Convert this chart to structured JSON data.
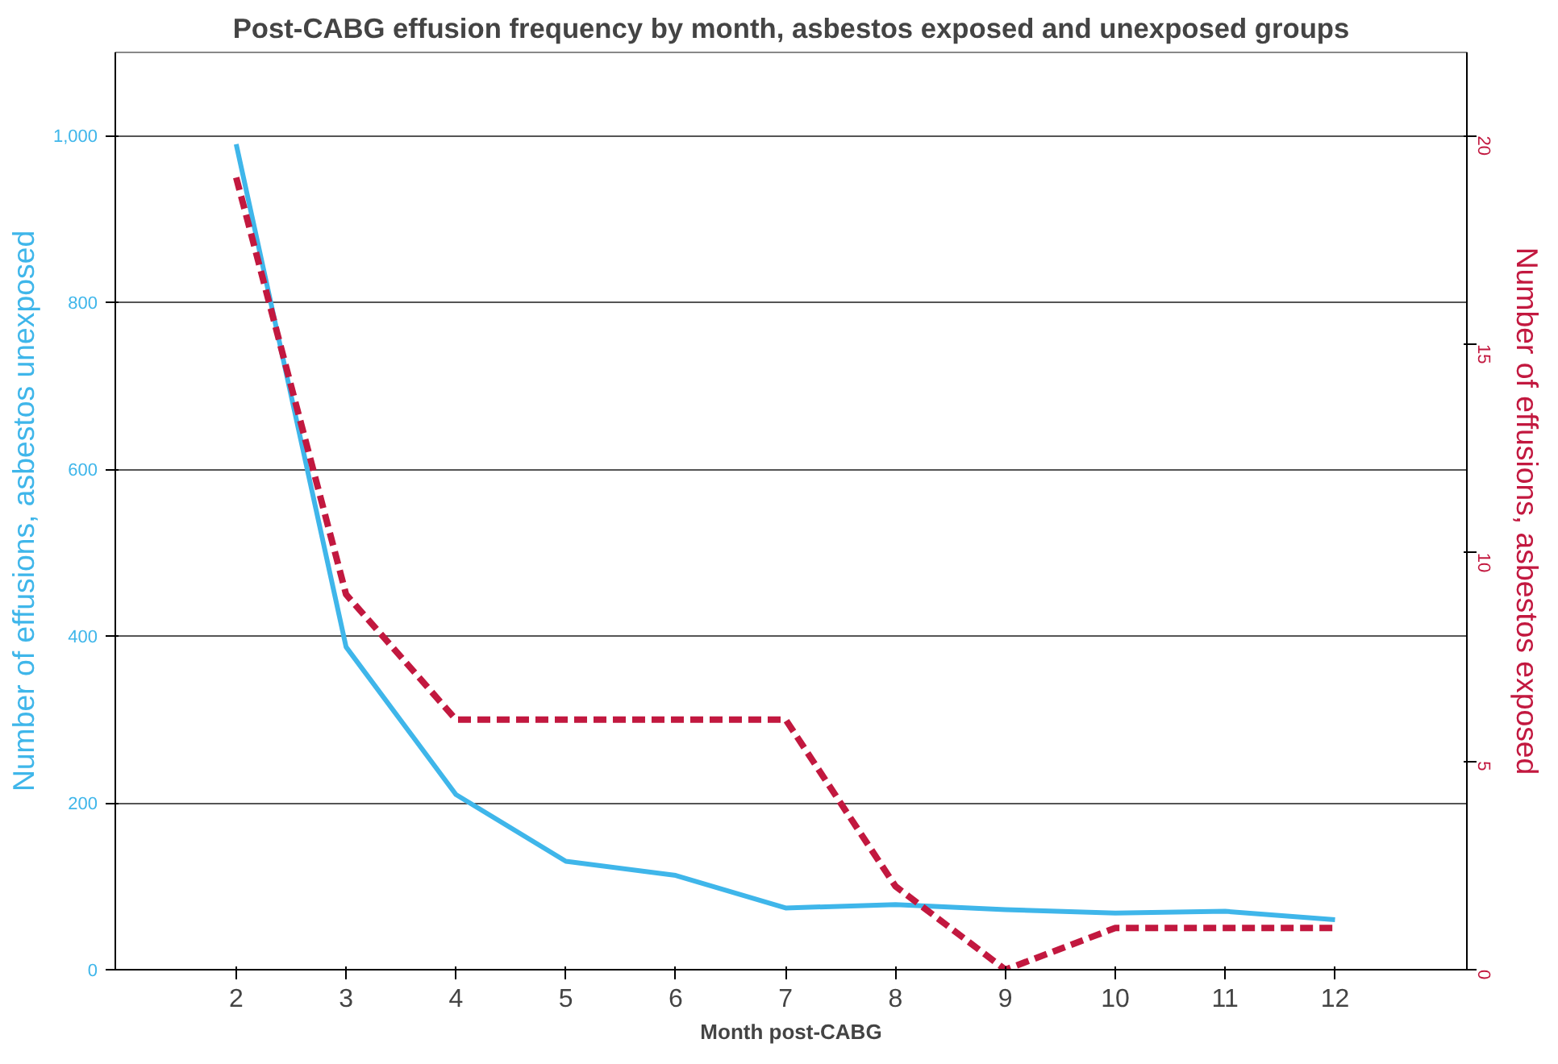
{
  "chart_data": {
    "type": "line",
    "title": "Post-CABG effusion frequency by month, asbestos exposed and unexposed groups",
    "xlabel": "Month post-CABG",
    "ylabel": "Number of effusions, asbestos unexposed",
    "y2label": "Number of effusions, asbestos exposed",
    "x": [
      2,
      3,
      4,
      5,
      6,
      7,
      8,
      9,
      10,
      11,
      12
    ],
    "xlim": [
      0.9,
      13.2
    ],
    "xticks": [
      2,
      3,
      4,
      5,
      6,
      7,
      8,
      9,
      10,
      11,
      12
    ],
    "ylim": [
      0,
      1100
    ],
    "yticks": [
      0,
      200,
      400,
      600,
      800,
      {
        "value": 1000,
        "label": "1,000"
      }
    ],
    "y2lim": [
      0,
      22
    ],
    "y2ticks": [
      0,
      5,
      10,
      15,
      20
    ],
    "grid": "y",
    "series": [
      {
        "color": "#3fb6ea",
        "line_style": "solid",
        "values": [
          990,
          387,
          210,
          130,
          113,
          74,
          78,
          72,
          68,
          70,
          60
        ]
      },
      {
        "color": "#c2183f",
        "line_style": "dashed",
        "axis": "y2",
        "values": [
          19,
          9,
          6,
          6,
          6,
          6,
          2,
          0,
          1,
          1,
          1
        ]
      }
    ]
  }
}
